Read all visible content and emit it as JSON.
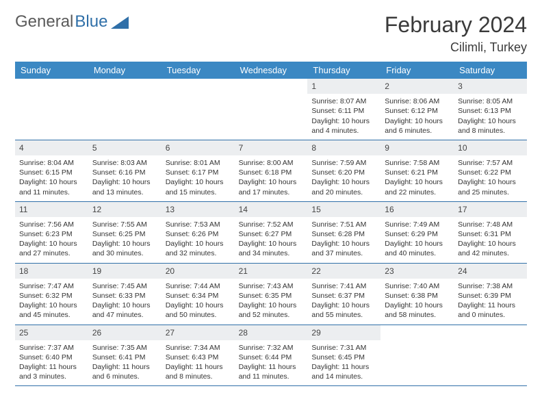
{
  "brand": {
    "word1": "General",
    "word2": "Blue",
    "logo_color": "#2f6fa8"
  },
  "title": "February 2024",
  "location": "Cilimli, Turkey",
  "colors": {
    "header_bg": "#3b88c3",
    "header_text": "#ffffff",
    "daynum_bg": "#eceef0",
    "border": "#2f6fa8",
    "text": "#333333"
  },
  "day_names": [
    "Sunday",
    "Monday",
    "Tuesday",
    "Wednesday",
    "Thursday",
    "Friday",
    "Saturday"
  ],
  "weeks": [
    [
      {
        "n": "",
        "empty": true
      },
      {
        "n": "",
        "empty": true
      },
      {
        "n": "",
        "empty": true
      },
      {
        "n": "",
        "empty": true
      },
      {
        "n": "1",
        "sr": "Sunrise: 8:07 AM",
        "ss": "Sunset: 6:11 PM",
        "dl": "Daylight: 10 hours and 4 minutes."
      },
      {
        "n": "2",
        "sr": "Sunrise: 8:06 AM",
        "ss": "Sunset: 6:12 PM",
        "dl": "Daylight: 10 hours and 6 minutes."
      },
      {
        "n": "3",
        "sr": "Sunrise: 8:05 AM",
        "ss": "Sunset: 6:13 PM",
        "dl": "Daylight: 10 hours and 8 minutes."
      }
    ],
    [
      {
        "n": "4",
        "sr": "Sunrise: 8:04 AM",
        "ss": "Sunset: 6:15 PM",
        "dl": "Daylight: 10 hours and 11 minutes."
      },
      {
        "n": "5",
        "sr": "Sunrise: 8:03 AM",
        "ss": "Sunset: 6:16 PM",
        "dl": "Daylight: 10 hours and 13 minutes."
      },
      {
        "n": "6",
        "sr": "Sunrise: 8:01 AM",
        "ss": "Sunset: 6:17 PM",
        "dl": "Daylight: 10 hours and 15 minutes."
      },
      {
        "n": "7",
        "sr": "Sunrise: 8:00 AM",
        "ss": "Sunset: 6:18 PM",
        "dl": "Daylight: 10 hours and 17 minutes."
      },
      {
        "n": "8",
        "sr": "Sunrise: 7:59 AM",
        "ss": "Sunset: 6:20 PM",
        "dl": "Daylight: 10 hours and 20 minutes."
      },
      {
        "n": "9",
        "sr": "Sunrise: 7:58 AM",
        "ss": "Sunset: 6:21 PM",
        "dl": "Daylight: 10 hours and 22 minutes."
      },
      {
        "n": "10",
        "sr": "Sunrise: 7:57 AM",
        "ss": "Sunset: 6:22 PM",
        "dl": "Daylight: 10 hours and 25 minutes."
      }
    ],
    [
      {
        "n": "11",
        "sr": "Sunrise: 7:56 AM",
        "ss": "Sunset: 6:23 PM",
        "dl": "Daylight: 10 hours and 27 minutes."
      },
      {
        "n": "12",
        "sr": "Sunrise: 7:55 AM",
        "ss": "Sunset: 6:25 PM",
        "dl": "Daylight: 10 hours and 30 minutes."
      },
      {
        "n": "13",
        "sr": "Sunrise: 7:53 AM",
        "ss": "Sunset: 6:26 PM",
        "dl": "Daylight: 10 hours and 32 minutes."
      },
      {
        "n": "14",
        "sr": "Sunrise: 7:52 AM",
        "ss": "Sunset: 6:27 PM",
        "dl": "Daylight: 10 hours and 34 minutes."
      },
      {
        "n": "15",
        "sr": "Sunrise: 7:51 AM",
        "ss": "Sunset: 6:28 PM",
        "dl": "Daylight: 10 hours and 37 minutes."
      },
      {
        "n": "16",
        "sr": "Sunrise: 7:49 AM",
        "ss": "Sunset: 6:29 PM",
        "dl": "Daylight: 10 hours and 40 minutes."
      },
      {
        "n": "17",
        "sr": "Sunrise: 7:48 AM",
        "ss": "Sunset: 6:31 PM",
        "dl": "Daylight: 10 hours and 42 minutes."
      }
    ],
    [
      {
        "n": "18",
        "sr": "Sunrise: 7:47 AM",
        "ss": "Sunset: 6:32 PM",
        "dl": "Daylight: 10 hours and 45 minutes."
      },
      {
        "n": "19",
        "sr": "Sunrise: 7:45 AM",
        "ss": "Sunset: 6:33 PM",
        "dl": "Daylight: 10 hours and 47 minutes."
      },
      {
        "n": "20",
        "sr": "Sunrise: 7:44 AM",
        "ss": "Sunset: 6:34 PM",
        "dl": "Daylight: 10 hours and 50 minutes."
      },
      {
        "n": "21",
        "sr": "Sunrise: 7:43 AM",
        "ss": "Sunset: 6:35 PM",
        "dl": "Daylight: 10 hours and 52 minutes."
      },
      {
        "n": "22",
        "sr": "Sunrise: 7:41 AM",
        "ss": "Sunset: 6:37 PM",
        "dl": "Daylight: 10 hours and 55 minutes."
      },
      {
        "n": "23",
        "sr": "Sunrise: 7:40 AM",
        "ss": "Sunset: 6:38 PM",
        "dl": "Daylight: 10 hours and 58 minutes."
      },
      {
        "n": "24",
        "sr": "Sunrise: 7:38 AM",
        "ss": "Sunset: 6:39 PM",
        "dl": "Daylight: 11 hours and 0 minutes."
      }
    ],
    [
      {
        "n": "25",
        "sr": "Sunrise: 7:37 AM",
        "ss": "Sunset: 6:40 PM",
        "dl": "Daylight: 11 hours and 3 minutes."
      },
      {
        "n": "26",
        "sr": "Sunrise: 7:35 AM",
        "ss": "Sunset: 6:41 PM",
        "dl": "Daylight: 11 hours and 6 minutes."
      },
      {
        "n": "27",
        "sr": "Sunrise: 7:34 AM",
        "ss": "Sunset: 6:43 PM",
        "dl": "Daylight: 11 hours and 8 minutes."
      },
      {
        "n": "28",
        "sr": "Sunrise: 7:32 AM",
        "ss": "Sunset: 6:44 PM",
        "dl": "Daylight: 11 hours and 11 minutes."
      },
      {
        "n": "29",
        "sr": "Sunrise: 7:31 AM",
        "ss": "Sunset: 6:45 PM",
        "dl": "Daylight: 11 hours and 14 minutes."
      },
      {
        "n": "",
        "empty": true
      },
      {
        "n": "",
        "empty": true
      }
    ]
  ]
}
